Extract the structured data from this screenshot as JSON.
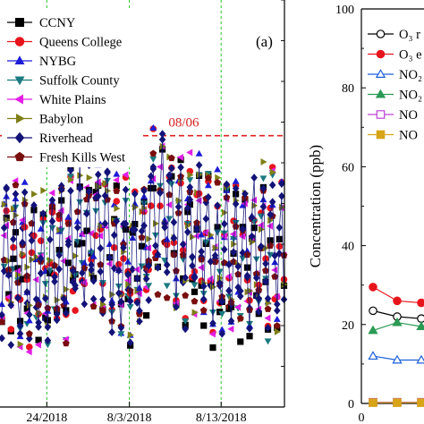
{
  "colors": {
    "CCNY": "#000000",
    "Queens College": "#e8141c",
    "NYBG": "#1c1cd8",
    "Suffolk County": "#1a7a80",
    "White Plains": "#e21ee6",
    "Babylon": "#7f7f18",
    "Riverhead": "#121278",
    "Fresh Kills West": "#7a0e0e",
    "threshold": "#e02020",
    "grid": "#22c522"
  },
  "chart_data": [
    {
      "type": "scatter",
      "panel_label": "(a)",
      "x_tick_labels": [
        "24/2018",
        "8/3/2018",
        "8/13/2018"
      ],
      "x_ticks": [
        -9,
        0,
        10
      ],
      "xlim": [
        -14.1,
        16.9
      ],
      "ylim": [
        0,
        105
      ],
      "threshold": {
        "value": 70,
        "label": "08/06"
      },
      "highlight_day": 3,
      "legend": [
        {
          "name": "CCNY",
          "marker": "square"
        },
        {
          "name": "Queens College",
          "marker": "circle"
        },
        {
          "name": "NYBG",
          "marker": "triangle-up"
        },
        {
          "name": "Suffolk County",
          "marker": "triangle-down"
        },
        {
          "name": "White Plains",
          "marker": "triangle-left"
        },
        {
          "name": "Babylon",
          "marker": "triangle-right"
        },
        {
          "name": "Riverhead",
          "marker": "diamond"
        },
        {
          "name": "Fresh Kills West",
          "marker": "pentagon"
        }
      ]
    },
    {
      "type": "line",
      "y_ticks": [
        0,
        20,
        40,
        60,
        80,
        100
      ],
      "ylim": [
        0,
        100
      ],
      "ylabel": "Concentration (ppb)",
      "x_tick_labels": [
        "0"
      ],
      "legend": [
        {
          "name": "O3 r",
          "display": "O₃ r",
          "marker": "circle-open",
          "color": "#000000"
        },
        {
          "name": "O3 e",
          "display": "O₃ e",
          "marker": "circle",
          "color": "#e8141c"
        },
        {
          "name": "NO2",
          "display": "NO₂",
          "marker": "triangle-open",
          "color": "#1c5fd8"
        },
        {
          "name": "NOz",
          "display": "NO₂",
          "marker": "triangle",
          "color": "#2a9a55"
        },
        {
          "name": "NO",
          "display": "NO",
          "marker": "square-open",
          "color": "#c040d8"
        },
        {
          "name": "NO e",
          "display": "NO",
          "marker": "square",
          "color": "#d8a418"
        }
      ],
      "series": [
        {
          "name": "O3 r",
          "x": [
            0.5,
            2,
            3.5,
            5
          ],
          "values": [
            23.5,
            22,
            21.5,
            19.5
          ]
        },
        {
          "name": "O3 e",
          "x": [
            0.5,
            2,
            3.5,
            5
          ],
          "values": [
            29.5,
            26,
            25.5,
            22.5
          ]
        },
        {
          "name": "NO2",
          "x": [
            0.5,
            2,
            3.5,
            5
          ],
          "values": [
            12,
            11,
            11,
            12
          ]
        },
        {
          "name": "NOz",
          "x": [
            0.5,
            2,
            3.5,
            5
          ],
          "values": [
            18.5,
            20.5,
            19.5,
            21
          ]
        },
        {
          "name": "NO",
          "x": [
            0.5,
            2,
            3.5,
            5
          ],
          "values": [
            0.3,
            0.3,
            0.3,
            0.5
          ]
        },
        {
          "name": "NO e",
          "x": [
            0.5,
            2,
            3.5,
            5
          ],
          "values": [
            0.2,
            0.2,
            0.2,
            0.2
          ]
        }
      ]
    }
  ]
}
